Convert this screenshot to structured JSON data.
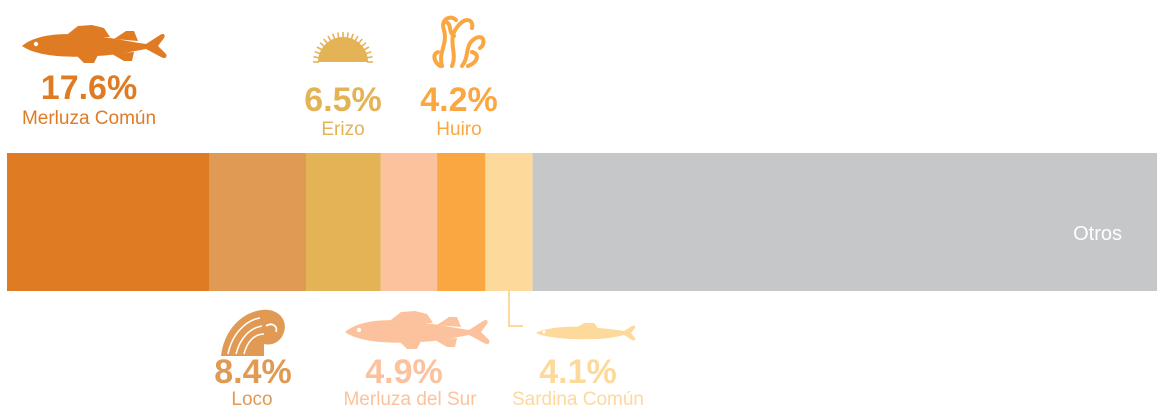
{
  "chart_data": {
    "type": "bar",
    "orientation": "horizontal-stacked",
    "categories": [
      "Merluza Común",
      "Loco",
      "Erizo",
      "Merluza del Sur",
      "Huiro",
      "Sardina Común",
      "Otros"
    ],
    "values": [
      17.6,
      8.4,
      6.5,
      4.9,
      4.2,
      4.1,
      54.3
    ],
    "labels": [
      "17.6%",
      "8.4%",
      "6.5%",
      "4.9%",
      "4.2%",
      "4.1%",
      ""
    ],
    "colors": [
      "#df7b23",
      "#e09a53",
      "#e4b356",
      "#fbc29d",
      "#fba741",
      "#fdd99b",
      "#c6c7c9"
    ],
    "label_position": [
      "top",
      "bottom",
      "top",
      "bottom",
      "top",
      "bottom",
      "inside"
    ],
    "icons": [
      "fish-icon",
      "shell-icon",
      "sea-urchin-icon",
      "fish-icon",
      "seaweed-icon",
      "sardine-icon",
      ""
    ],
    "inside_label": "Otros",
    "xlim": [
      0,
      100
    ],
    "title": "",
    "xlabel": "",
    "ylabel": ""
  }
}
